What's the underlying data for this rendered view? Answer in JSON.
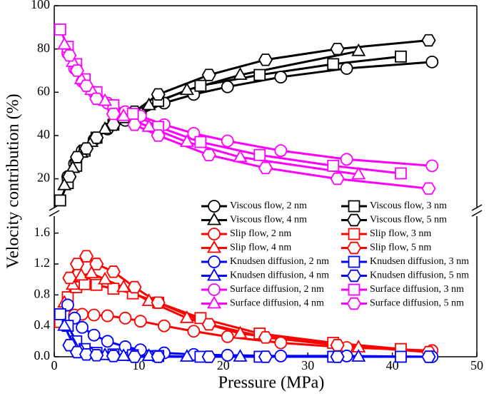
{
  "chart_data": [
    {
      "type": "line",
      "ylabel": "Velocity contribution (%)",
      "ylim": [
        7,
        100
      ],
      "yticks": [
        20,
        40,
        60,
        80,
        100
      ],
      "series": [
        {
          "name": "Viscous flow, 2 nm",
          "color": "#000000",
          "marker": "circle",
          "x": [
            1.6,
            2.4,
            3.3,
            4.7,
            6.3,
            8.4,
            10.2,
            13.0,
            16.5,
            20.5,
            26.8,
            34.6,
            44.7
          ],
          "values": [
            21,
            27,
            33,
            38,
            43,
            47,
            50,
            55,
            59,
            62.5,
            67,
            71,
            74
          ]
        },
        {
          "name": "Viscous flow, 3 nm",
          "color": "#000000",
          "marker": "square",
          "x": [
            0.7,
            1.6,
            2.6,
            3.6,
            5.0,
            7.0,
            9.3,
            12.3,
            17.3,
            24.3,
            33.0,
            41.0
          ],
          "values": [
            10,
            18,
            26,
            33,
            39,
            45,
            50,
            56,
            63,
            68,
            73,
            76.5
          ]
        },
        {
          "name": "Viscous flow, 4 nm",
          "color": "#000000",
          "marker": "triangle",
          "x": [
            1.2,
            2.2,
            3.2,
            4.4,
            6.0,
            8.2,
            11.2,
            15.7,
            22.0,
            36.0
          ],
          "values": [
            17,
            25,
            32,
            37,
            43,
            48,
            54,
            61,
            68,
            79
          ]
        },
        {
          "name": "Viscous flow, 5 nm",
          "color": "#000000",
          "marker": "hexagon",
          "x": [
            1.8,
            2.7,
            3.8,
            5.0,
            7.0,
            9.5,
            12.3,
            18.3,
            25.0,
            33.5,
            44.3
          ],
          "values": [
            21,
            30,
            34,
            39,
            45,
            51,
            59,
            68,
            75,
            80,
            84
          ]
        },
        {
          "name": "Surface diffusion, 2 nm",
          "color": "#ff00ff",
          "marker": "circle",
          "x": [
            1.6,
            2.4,
            3.3,
            4.7,
            6.3,
            8.4,
            10.2,
            13.0,
            16.5,
            20.5,
            26.8,
            34.6,
            44.7
          ],
          "values": [
            78,
            71,
            65,
            60,
            55,
            51,
            49,
            45,
            41,
            37.5,
            33,
            29,
            26
          ]
        },
        {
          "name": "Surface diffusion, 3 nm",
          "color": "#ff00ff",
          "marker": "square",
          "x": [
            0.7,
            1.6,
            2.6,
            3.6,
            5.0,
            7.0,
            9.3,
            12.3,
            17.3,
            24.3,
            33.0,
            41.0
          ],
          "values": [
            89,
            81,
            73,
            66,
            60,
            54,
            50,
            44,
            37,
            31,
            26,
            22.5
          ]
        },
        {
          "name": "Surface diffusion, 4 nm",
          "color": "#ff00ff",
          "marker": "triangle",
          "x": [
            1.2,
            2.2,
            3.2,
            4.4,
            6.0,
            8.2,
            11.2,
            15.7,
            22.0,
            36.0
          ],
          "values": [
            82,
            74,
            66,
            61,
            56,
            49,
            44,
            37,
            30,
            22
          ]
        },
        {
          "name": "Surface diffusion, 5 nm",
          "color": "#ff00ff",
          "marker": "hexagon",
          "x": [
            1.8,
            2.7,
            3.8,
            5.0,
            7.0,
            9.5,
            12.3,
            18.3,
            25.0,
            33.5,
            44.3
          ],
          "values": [
            77,
            70,
            63,
            57,
            50,
            45,
            40,
            31,
            25,
            20,
            15.5
          ]
        }
      ]
    },
    {
      "type": "line",
      "xlabel": "Pressure (MPa)",
      "xlim": [
        0,
        50
      ],
      "xticks": [
        0,
        10,
        20,
        30,
        40,
        50
      ],
      "ylim": [
        0,
        1.8
      ],
      "yticks": [
        {
          "value": 0,
          "label": "0.0"
        },
        {
          "value": 0.4,
          "label": "0.4"
        },
        {
          "value": 0.8,
          "label": "0.8"
        },
        {
          "value": 1.2,
          "label": "1.2"
        },
        {
          "value": 1.6,
          "label": "1.6"
        }
      ],
      "series": [
        {
          "name": "Slip flow, 2 nm",
          "color": "#ff0000",
          "marker": "circle",
          "x": [
            1.6,
            2.4,
            3.3,
            4.7,
            6.3,
            8.4,
            10.2,
            13.0,
            16.5,
            20.5,
            26.8,
            34.6,
            44.7
          ],
          "values": [
            0.52,
            0.54,
            0.55,
            0.54,
            0.53,
            0.5,
            0.46,
            0.4,
            0.33,
            0.26,
            0.18,
            0.12,
            0.08
          ]
        },
        {
          "name": "Slip flow, 3 nm",
          "color": "#ff0000",
          "marker": "square",
          "x": [
            0.7,
            1.6,
            2.6,
            3.6,
            5.0,
            7.0,
            9.3,
            12.3,
            17.3,
            24.3,
            33.0,
            41.0
          ],
          "values": [
            0.45,
            0.77,
            0.9,
            0.94,
            0.93,
            0.88,
            0.82,
            0.7,
            0.5,
            0.3,
            0.18,
            0.1
          ]
        },
        {
          "name": "Slip flow, 4 nm",
          "color": "#ff0000",
          "marker": "triangle",
          "x": [
            1.2,
            2.2,
            3.2,
            4.4,
            6.0,
            8.2,
            11.2,
            15.7,
            22.0,
            36.0
          ],
          "values": [
            0.7,
            0.93,
            1.05,
            1.08,
            1.0,
            0.9,
            0.72,
            0.5,
            0.3,
            0.12
          ]
        },
        {
          "name": "Slip flow, 5 nm",
          "color": "#ff0000",
          "marker": "hexagon",
          "x": [
            1.8,
            2.7,
            3.8,
            5.0,
            7.0,
            9.5,
            12.3,
            18.3,
            25.0,
            33.5,
            44.3
          ],
          "values": [
            1.02,
            1.2,
            1.3,
            1.2,
            1.1,
            0.9,
            0.7,
            0.42,
            0.25,
            0.15,
            0.06
          ]
        },
        {
          "name": "Knudsen diffusion, 2 nm",
          "color": "#0000ff",
          "marker": "circle",
          "x": [
            1.6,
            2.4,
            3.3,
            4.7,
            6.3,
            8.4,
            10.2,
            13.0,
            16.5,
            20.5,
            26.8,
            34.6,
            44.7
          ],
          "values": [
            0.67,
            0.5,
            0.38,
            0.28,
            0.2,
            0.13,
            0.09,
            0.05,
            0.03,
            0.02,
            0.01,
            0.01,
            0
          ]
        },
        {
          "name": "Knudsen diffusion, 3 nm",
          "color": "#0000ff",
          "marker": "square",
          "x": [
            0.7,
            1.6,
            2.6,
            3.6,
            5.0,
            7.0,
            9.3,
            12.3,
            17.3,
            24.3,
            33.0,
            41.0
          ],
          "values": [
            0.55,
            0.4,
            0.2,
            0.1,
            0.05,
            0.03,
            0.02,
            0.01,
            0,
            0,
            0,
            0
          ]
        },
        {
          "name": "Knudsen diffusion, 4 nm",
          "color": "#0000ff",
          "marker": "triangle",
          "x": [
            1.2,
            2.2,
            3.2,
            4.4,
            6.0,
            8.2,
            11.2,
            15.7,
            22.0,
            36.0
          ],
          "values": [
            0.4,
            0.17,
            0.08,
            0.04,
            0.02,
            0.01,
            0.01,
            0,
            0,
            0
          ]
        },
        {
          "name": "Knudsen diffusion, 5 nm",
          "color": "#0000ff",
          "marker": "hexagon",
          "x": [
            1.8,
            2.7,
            3.8,
            5.0,
            7.0,
            9.5,
            12.3,
            18.3,
            25.0,
            33.5,
            44.3
          ],
          "values": [
            0.15,
            0.06,
            0.03,
            0.02,
            0.01,
            0,
            0,
            0,
            0,
            0,
            0
          ]
        }
      ]
    }
  ]
}
